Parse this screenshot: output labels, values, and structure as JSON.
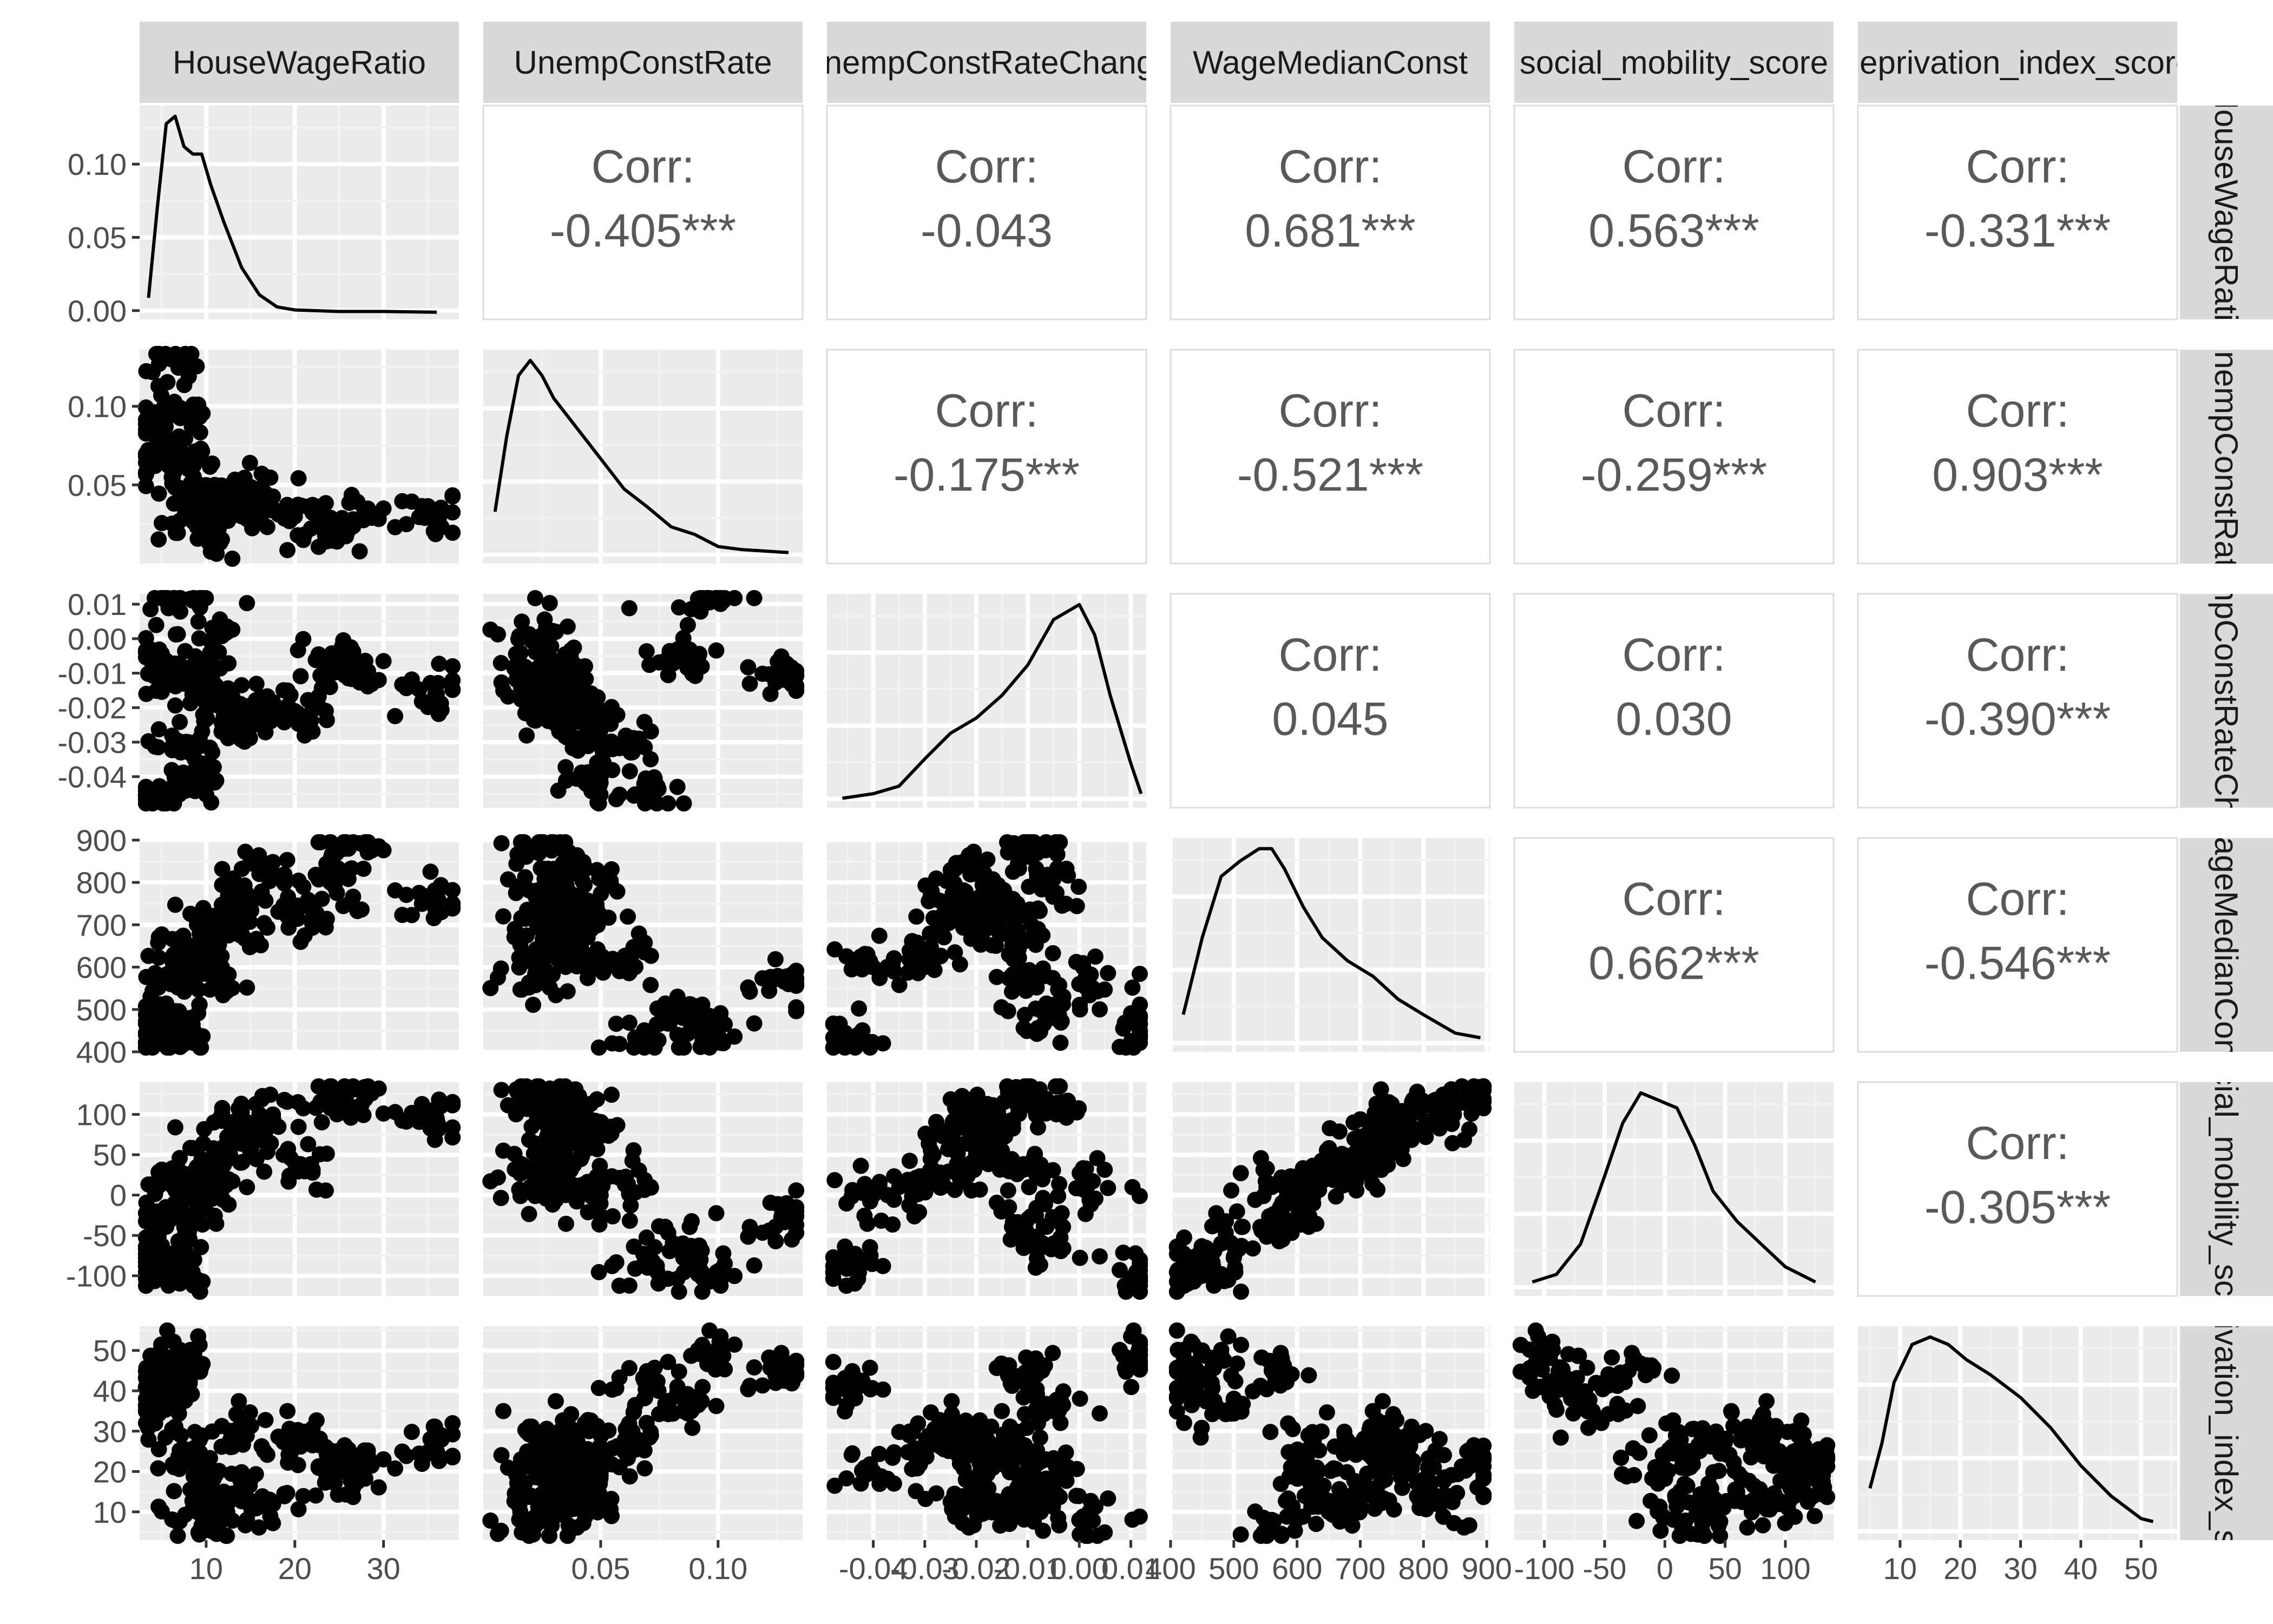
{
  "chart_data": {
    "type": "scatter-matrix",
    "title": "",
    "variables": [
      {
        "label": "HouseWageRatio",
        "row_label": "HouseWageRatio",
        "range": [
          2.5,
          38.5
        ],
        "ticks": [
          10,
          20,
          30
        ],
        "tick_labels": [
          "10",
          "20",
          "30"
        ]
      },
      {
        "label": "UnempConstRate",
        "row_label": "UnempConstRate",
        "range": [
          0.0,
          0.136
        ],
        "ticks": [
          0.05,
          0.1
        ],
        "tick_labels": [
          "0.05",
          "0.10"
        ]
      },
      {
        "label": "UnempConstRateChange",
        "row_label": "UnempConstRateChange",
        "range": [
          -0.049,
          0.013
        ],
        "ticks": [
          -0.04,
          -0.03,
          -0.02,
          -0.01,
          0.0,
          0.01
        ],
        "tick_labels": [
          "-0.04",
          "-0.03",
          "-0.02",
          "-0.01",
          "0.00",
          "0.01"
        ]
      },
      {
        "label": "WageMedianConst",
        "row_label": "WageMedianConst",
        "range": [
          400,
          905
        ],
        "ticks": [
          400,
          500,
          600,
          700,
          800,
          900
        ],
        "tick_labels": [
          "400",
          "500",
          "600",
          "700",
          "800",
          "900"
        ]
      },
      {
        "label": "social_mobility_score",
        "row_label": "social_mobility_score",
        "range": [
          -125,
          140
        ],
        "ticks": [
          -100,
          -50,
          0,
          50,
          100
        ],
        "tick_labels": [
          "-100",
          "-50",
          "0",
          "50",
          "100"
        ]
      },
      {
        "label": "deprivation_index_score",
        "row_label": "deprivation_index_score",
        "range": [
          3,
          56
        ],
        "ticks": [
          10,
          20,
          30,
          40,
          50
        ],
        "tick_labels": [
          "10",
          "20",
          "30",
          "40",
          "50"
        ]
      }
    ],
    "density_y_axis": {
      "range": [
        -0.006,
        0.14
      ],
      "ticks": [
        0.0,
        0.05,
        0.1
      ],
      "tick_labels": [
        "0.00",
        "0.05",
        "0.10"
      ]
    },
    "densities": [
      {
        "x": [
          3.5,
          4.5,
          5.5,
          6.5,
          7.5,
          8.5,
          9.5,
          10.5,
          12,
          14,
          16,
          18,
          20,
          25,
          30,
          36
        ],
        "y": [
          0.01,
          0.07,
          0.125,
          0.13,
          0.11,
          0.105,
          0.105,
          0.085,
          0.06,
          0.03,
          0.012,
          0.004,
          0.002,
          0.001,
          0.001,
          0.0005
        ]
      },
      {
        "x": [
          0.005,
          0.01,
          0.015,
          0.02,
          0.025,
          0.03,
          0.04,
          0.05,
          0.06,
          0.07,
          0.08,
          0.09,
          0.1,
          0.11,
          0.12,
          0.13
        ],
        "y": [
          0.03,
          0.08,
          0.12,
          0.13,
          0.12,
          0.105,
          0.085,
          0.065,
          0.045,
          0.033,
          0.02,
          0.015,
          0.007,
          0.005,
          0.004,
          0.003
        ]
      },
      {
        "x": [
          -0.046,
          -0.04,
          -0.035,
          -0.03,
          -0.025,
          -0.02,
          -0.015,
          -0.01,
          -0.005,
          0.0,
          0.003,
          0.006,
          0.01,
          0.012
        ],
        "y": [
          0.002,
          0.005,
          0.01,
          0.028,
          0.045,
          0.055,
          0.07,
          0.09,
          0.12,
          0.13,
          0.11,
          0.07,
          0.025,
          0.005
        ]
      },
      {
        "x": [
          420,
          450,
          480,
          510,
          540,
          560,
          580,
          610,
          640,
          680,
          720,
          760,
          800,
          850,
          890
        ],
        "y": [
          0.02,
          0.07,
          0.11,
          0.12,
          0.128,
          0.128,
          0.115,
          0.09,
          0.07,
          0.055,
          0.045,
          0.03,
          0.02,
          0.008,
          0.005
        ]
      },
      {
        "x": [
          -110,
          -90,
          -70,
          -50,
          -35,
          -20,
          -5,
          10,
          25,
          40,
          60,
          80,
          100,
          125
        ],
        "y": [
          0.005,
          0.01,
          0.03,
          0.075,
          0.11,
          0.13,
          0.125,
          0.12,
          0.095,
          0.065,
          0.045,
          0.03,
          0.015,
          0.005
        ]
      },
      {
        "x": [
          5,
          7,
          9,
          12,
          15,
          18,
          21,
          25,
          30,
          35,
          40,
          45,
          50,
          52
        ],
        "y": [
          0.03,
          0.06,
          0.1,
          0.125,
          0.13,
          0.125,
          0.115,
          0.105,
          0.09,
          0.07,
          0.045,
          0.025,
          0.01,
          0.008
        ]
      }
    ],
    "correlations": [
      {
        "row": 0,
        "col": 1,
        "label": "Corr:",
        "value": "-0.405***"
      },
      {
        "row": 0,
        "col": 2,
        "label": "Corr:",
        "value": "-0.043"
      },
      {
        "row": 0,
        "col": 3,
        "label": "Corr:",
        "value": "0.681***"
      },
      {
        "row": 0,
        "col": 4,
        "label": "Corr:",
        "value": "0.563***"
      },
      {
        "row": 0,
        "col": 5,
        "label": "Corr:",
        "value": "-0.331***"
      },
      {
        "row": 1,
        "col": 2,
        "label": "Corr:",
        "value": "-0.175***"
      },
      {
        "row": 1,
        "col": 3,
        "label": "Corr:",
        "value": "-0.521***"
      },
      {
        "row": 1,
        "col": 4,
        "label": "Corr:",
        "value": "-0.259***"
      },
      {
        "row": 1,
        "col": 5,
        "label": "Corr:",
        "value": "0.903***"
      },
      {
        "row": 2,
        "col": 3,
        "label": "Corr:",
        "value": "0.045"
      },
      {
        "row": 2,
        "col": 4,
        "label": "Corr:",
        "value": "0.030"
      },
      {
        "row": 2,
        "col": 5,
        "label": "Corr:",
        "value": "-0.390***"
      },
      {
        "row": 3,
        "col": 4,
        "label": "Corr:",
        "value": "0.662***"
      },
      {
        "row": 3,
        "col": 5,
        "label": "Corr:",
        "value": "-0.546***"
      },
      {
        "row": 4,
        "col": 5,
        "label": "Corr:",
        "value": "-0.305***"
      }
    ],
    "scatter_sample": {
      "HouseWageRatio": [
        4.5,
        6,
        8,
        12,
        16,
        20,
        24,
        26,
        36,
        7,
        9,
        10,
        13,
        5,
        11
      ],
      "UnempConstRate": [
        0.085,
        0.13,
        0.06,
        0.035,
        0.04,
        0.03,
        0.028,
        0.026,
        0.03,
        0.095,
        0.05,
        0.025,
        0.045,
        0.07,
        0.02
      ],
      "UnempConstRateChange": [
        -0.005,
        -0.01,
        -0.03,
        -0.02,
        -0.02,
        -0.021,
        -0.006,
        -0.01,
        -0.016,
        0.012,
        -0.04,
        -0.013,
        -0.025,
        -0.045,
        0.0
      ],
      "WageMedianConst": [
        480,
        560,
        620,
        700,
        820,
        720,
        800,
        890,
        770,
        450,
        600,
        650,
        750,
        430,
        560
      ],
      "social_mobility_score": [
        -60,
        -30,
        20,
        60,
        100,
        40,
        110,
        130,
        95,
        -100,
        0,
        30,
        80,
        -90,
        10
      ],
      "deprivation_index_score": [
        35,
        45,
        25,
        15,
        12,
        28,
        18,
        22,
        25,
        50,
        20,
        10,
        30,
        40,
        8
      ]
    }
  }
}
